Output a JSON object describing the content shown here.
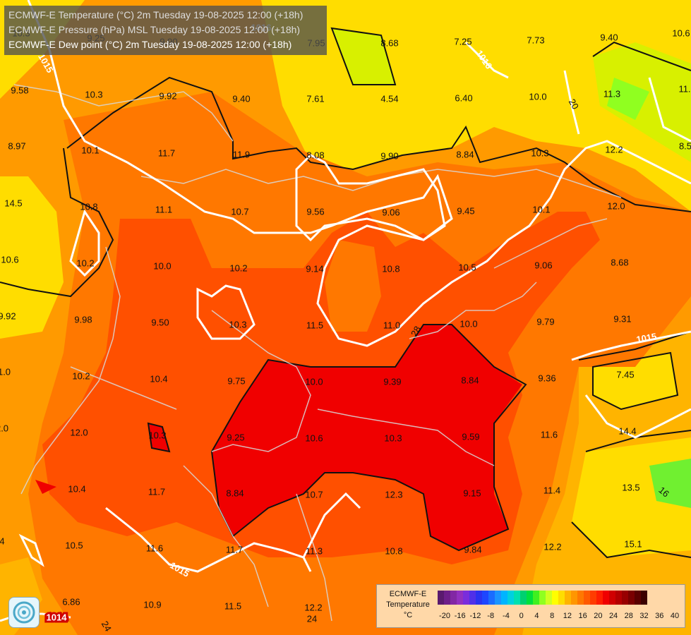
{
  "header": {
    "lines": [
      "ECMWF-E Temperature (°C) 2m Tuesday 19-08-2025 12:00 (+18h)",
      "ECMWF-E Pressure (hPa) MSL Tuesday 19-08-2025 12:00 (+18h)",
      "ECMWF-E Dew point (°C) 2m Tuesday 19-08-2025 12:00 (+18h)"
    ]
  },
  "map": {
    "point_values": [
      "10.3",
      "9.25",
      "9.90",
      "7.95",
      "8.68",
      "7.25",
      "7.73",
      "9.40",
      "10.6",
      "9.58",
      "10.3",
      "9.92",
      "9.40",
      "7.61",
      "4.54",
      "6.40",
      "10.0",
      "11.3",
      "11.",
      "8.97",
      "10.1",
      "11.7",
      "11.9",
      "8.08",
      "9.90",
      "8.84",
      "10.3",
      "12.2",
      "8.5",
      "14.5",
      "10.8",
      "11.1",
      "10.7",
      "9.56",
      "9.06",
      "9.45",
      "10.1",
      "12.0",
      "10.6",
      "10.2",
      "10.0",
      "10.2",
      "9.14",
      "10.8",
      "10.5",
      "9.06",
      "8.68",
      "9.92",
      "9.98",
      "9.50",
      "10.3",
      "11.5",
      "11.0",
      "10.0",
      "9.79",
      "9.31",
      "1.0",
      "10.2",
      "10.4",
      "9.75",
      "10.0",
      "9.39",
      "8.84",
      "9.36",
      "7.45",
      "2.0",
      "12.0",
      "10.3",
      "9.25",
      "10.6",
      "10.3",
      "9.59",
      "11.6",
      "14.4",
      "10.4",
      "11.7",
      "8.84",
      "10.7",
      "12.3",
      "9.15",
      "11.4",
      "13.5",
      "4",
      "10.5",
      "11.6",
      "11.7",
      "11.3",
      "10.8",
      "9.84",
      "12.2",
      "15.1",
      "6.86",
      "10.9",
      "11.5",
      "12.2"
    ],
    "isobar_labels": [
      "1015",
      "1016",
      "1015",
      "1015",
      "1014",
      "1016"
    ],
    "dewpoint_labels": [
      "20",
      "28",
      "24",
      "24",
      "16"
    ]
  },
  "legend": {
    "title_lines": [
      "ECMWF-E",
      "Temperature",
      "°C"
    ],
    "ticks": [
      "-20",
      "-16",
      "-12",
      "-8",
      "-4",
      "0",
      "4",
      "8",
      "12",
      "16",
      "20",
      "24",
      "28",
      "32",
      "36",
      "40"
    ],
    "colors": [
      "#5a1a6e",
      "#6e1f8a",
      "#8227a4",
      "#9230c0",
      "#7a2ddc",
      "#5030e8",
      "#2a32f0",
      "#1e46ff",
      "#1a6cff",
      "#1a94ff",
      "#00b4ff",
      "#00d0e0",
      "#00e0b0",
      "#00d070",
      "#00e03c",
      "#40f020",
      "#90ff20",
      "#d0ff20",
      "#ffff00",
      "#ffdd00",
      "#ffb400",
      "#ff9600",
      "#ff7800",
      "#ff5a00",
      "#ff3c00",
      "#ff1e00",
      "#f00000",
      "#d00000",
      "#b40000",
      "#980000",
      "#7a0000",
      "#5a0000",
      "#3a0000"
    ]
  }
}
